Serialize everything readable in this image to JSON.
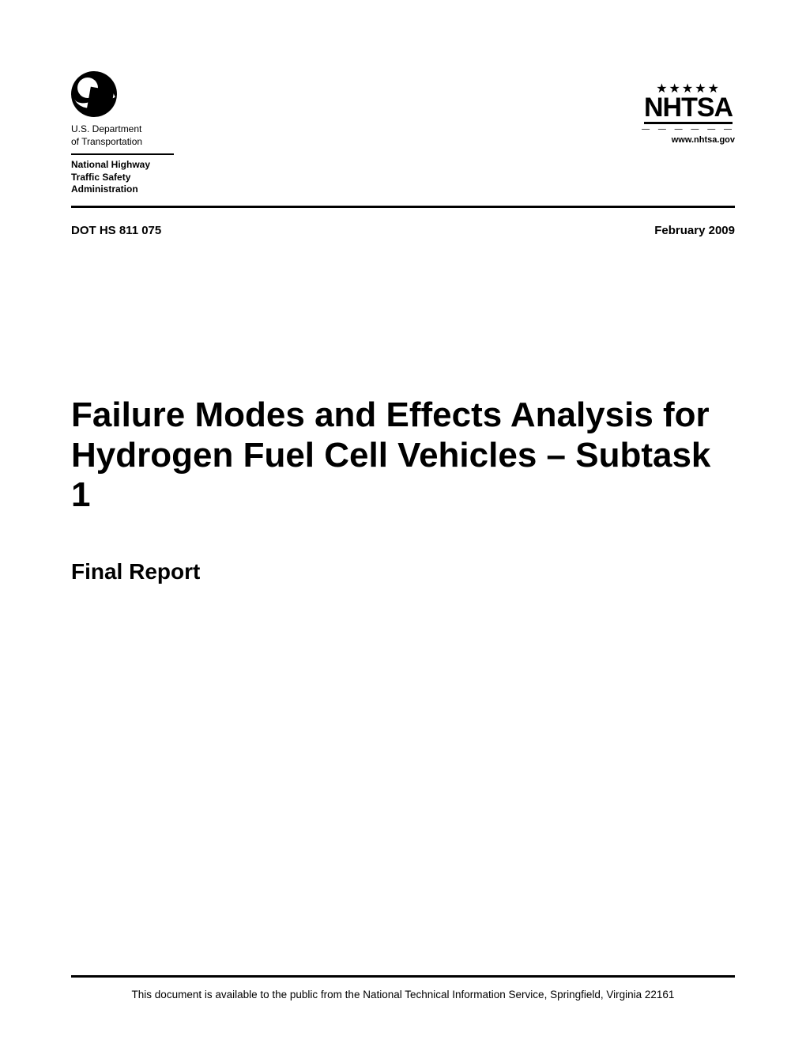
{
  "header": {
    "dept_line1": "U.S. Department",
    "dept_line2": "of Transportation",
    "agency_line1": "National Highway",
    "agency_line2": "Traffic Safety",
    "agency_line3": "Administration",
    "nhtsa_stars": "★★★★★",
    "nhtsa_label": "NHTSA",
    "nhtsa_dashes": "— — — — — —",
    "nhtsa_url": "www.nhtsa.gov"
  },
  "meta": {
    "doc_number": "DOT HS 811 075",
    "date": "February 2009"
  },
  "title": {
    "main": "Failure Modes and Effects Analysis for Hydrogen Fuel Cell Vehicles – Subtask 1",
    "subtitle": "Final Report"
  },
  "footer": {
    "text": "This document is available to the public from the National Technical Information Service, Springfield, Virginia 22161"
  },
  "colors": {
    "text": "#000000",
    "background": "#ffffff",
    "rule": "#000000"
  },
  "typography": {
    "title_fontsize": 44,
    "subtitle_fontsize": 28,
    "meta_fontsize": 15,
    "body_fontsize": 13.5,
    "header_small_fontsize": 12
  }
}
